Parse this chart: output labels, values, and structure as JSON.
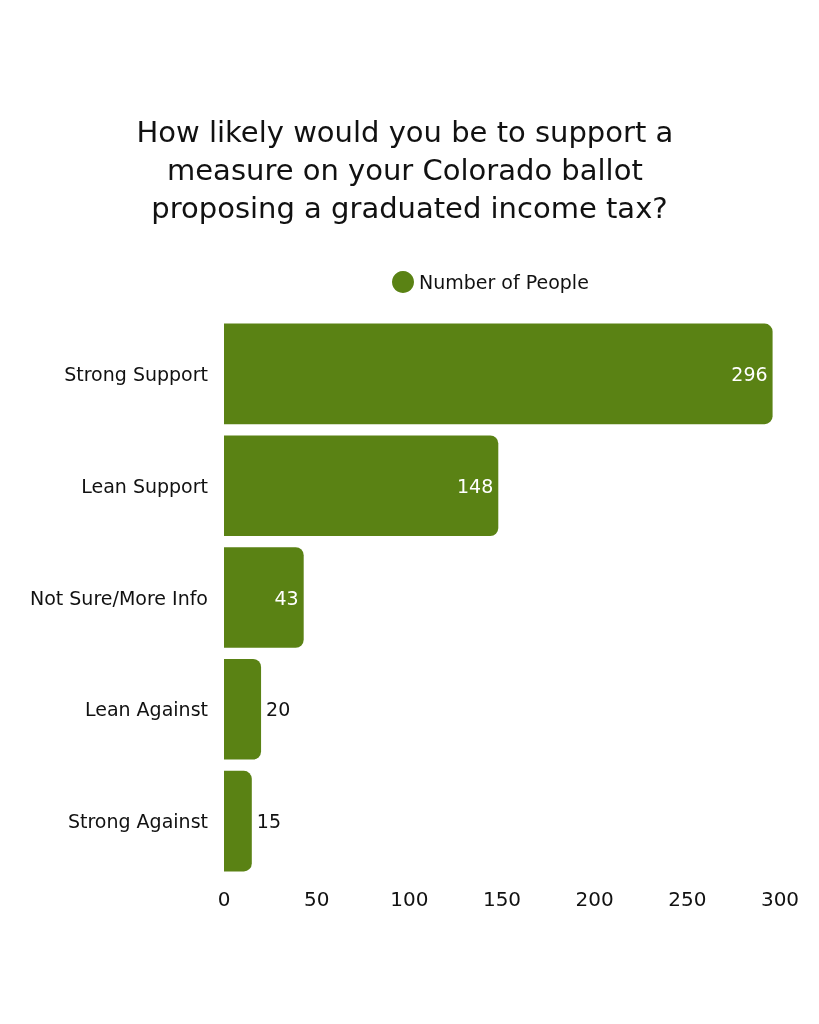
{
  "chart_data": {
    "type": "bar",
    "orientation": "horizontal",
    "title": "How likely would you be to support a measure on your Colorado ballot proposing a graduated income tax?",
    "categories": [
      "Strong Support",
      "Lean Support",
      "Not Sure/More Info",
      "Lean Against",
      "Strong Against"
    ],
    "series": [
      {
        "name": "Number of People",
        "color": "#5a8214",
        "values": [
          296,
          148,
          43,
          20,
          15
        ]
      }
    ],
    "xlim": [
      0,
      300
    ],
    "xticks": [
      0,
      50,
      100,
      150,
      200,
      250,
      300
    ],
    "data_labels": true,
    "legend": "top",
    "grid": false
  }
}
